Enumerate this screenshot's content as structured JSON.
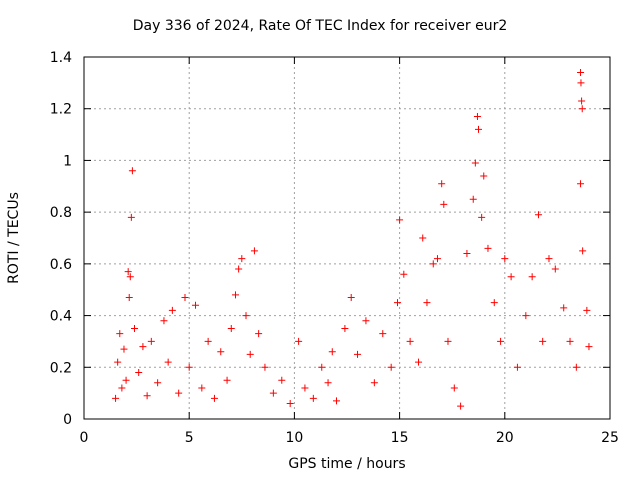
{
  "chart_data": {
    "type": "scatter",
    "title": "Day 336 of 2024, Rate Of TEC Index for receiver eur2",
    "xlabel": "GPS time / hours",
    "ylabel": "ROTI / TECUs",
    "xlim": [
      0,
      25
    ],
    "ylim": [
      0,
      1.4
    ],
    "xticks": [
      0,
      5,
      10,
      15,
      20,
      25
    ],
    "xtick_labels": [
      "0",
      "5",
      "10",
      "15",
      "20",
      "25"
    ],
    "yticks": [
      0,
      0.2,
      0.4,
      0.6,
      0.8,
      1,
      1.2,
      1.4
    ],
    "ytick_labels": [
      "0",
      "0.2",
      "0.4",
      "0.6",
      "0.8",
      "1",
      "1.2",
      "1.4"
    ],
    "grid": true,
    "marker": "+",
    "color": "#ff0000",
    "series": [
      {
        "name": "ROTI",
        "points": [
          [
            1.5,
            0.08
          ],
          [
            1.6,
            0.22
          ],
          [
            1.7,
            0.33
          ],
          [
            1.8,
            0.12
          ],
          [
            1.9,
            0.27
          ],
          [
            2.0,
            0.15
          ],
          [
            2.1,
            0.57
          ],
          [
            2.15,
            0.47
          ],
          [
            2.2,
            0.55
          ],
          [
            2.25,
            0.78
          ],
          [
            2.3,
            0.96
          ],
          [
            2.4,
            0.35
          ],
          [
            2.6,
            0.18
          ],
          [
            2.8,
            0.28
          ],
          [
            3.0,
            0.09
          ],
          [
            3.2,
            0.3
          ],
          [
            3.5,
            0.14
          ],
          [
            3.8,
            0.38
          ],
          [
            4.0,
            0.22
          ],
          [
            4.2,
            0.42
          ],
          [
            4.5,
            0.1
          ],
          [
            4.8,
            0.47
          ],
          [
            5.0,
            0.2
          ],
          [
            5.3,
            0.44
          ],
          [
            5.6,
            0.12
          ],
          [
            5.9,
            0.3
          ],
          [
            6.2,
            0.08
          ],
          [
            6.5,
            0.26
          ],
          [
            6.8,
            0.15
          ],
          [
            7.0,
            0.35
          ],
          [
            7.2,
            0.48
          ],
          [
            7.35,
            0.58
          ],
          [
            7.5,
            0.62
          ],
          [
            7.7,
            0.4
          ],
          [
            7.9,
            0.25
          ],
          [
            8.1,
            0.65
          ],
          [
            8.3,
            0.33
          ],
          [
            8.6,
            0.2
          ],
          [
            9.0,
            0.1
          ],
          [
            9.4,
            0.15
          ],
          [
            9.8,
            0.06
          ],
          [
            10.2,
            0.3
          ],
          [
            10.5,
            0.12
          ],
          [
            10.9,
            0.08
          ],
          [
            11.3,
            0.2
          ],
          [
            11.6,
            0.14
          ],
          [
            11.8,
            0.26
          ],
          [
            12.0,
            0.07
          ],
          [
            12.4,
            0.35
          ],
          [
            12.7,
            0.47
          ],
          [
            13.0,
            0.25
          ],
          [
            13.4,
            0.38
          ],
          [
            13.8,
            0.14
          ],
          [
            14.2,
            0.33
          ],
          [
            14.6,
            0.2
          ],
          [
            14.9,
            0.45
          ],
          [
            15.0,
            0.77
          ],
          [
            15.2,
            0.56
          ],
          [
            15.5,
            0.3
          ],
          [
            15.9,
            0.22
          ],
          [
            16.1,
            0.7
          ],
          [
            16.3,
            0.45
          ],
          [
            16.6,
            0.6
          ],
          [
            16.8,
            0.62
          ],
          [
            17.0,
            0.91
          ],
          [
            17.1,
            0.83
          ],
          [
            17.3,
            0.3
          ],
          [
            17.6,
            0.12
          ],
          [
            17.9,
            0.05
          ],
          [
            18.2,
            0.64
          ],
          [
            18.5,
            0.85
          ],
          [
            18.6,
            0.99
          ],
          [
            18.7,
            1.17
          ],
          [
            18.75,
            1.12
          ],
          [
            18.9,
            0.78
          ],
          [
            19.0,
            0.94
          ],
          [
            19.2,
            0.66
          ],
          [
            19.5,
            0.45
          ],
          [
            19.8,
            0.3
          ],
          [
            20.0,
            0.62
          ],
          [
            20.3,
            0.55
          ],
          [
            20.6,
            0.2
          ],
          [
            21.0,
            0.4
          ],
          [
            21.3,
            0.55
          ],
          [
            21.6,
            0.79
          ],
          [
            21.8,
            0.3
          ],
          [
            22.1,
            0.62
          ],
          [
            22.4,
            0.58
          ],
          [
            22.8,
            0.43
          ],
          [
            23.1,
            0.3
          ],
          [
            23.4,
            0.2
          ],
          [
            23.6,
            1.34
          ],
          [
            23.62,
            1.3
          ],
          [
            23.65,
            1.23
          ],
          [
            23.68,
            1.2
          ],
          [
            23.6,
            0.91
          ],
          [
            23.7,
            0.65
          ],
          [
            23.9,
            0.42
          ],
          [
            24.0,
            0.28
          ]
        ]
      }
    ]
  }
}
